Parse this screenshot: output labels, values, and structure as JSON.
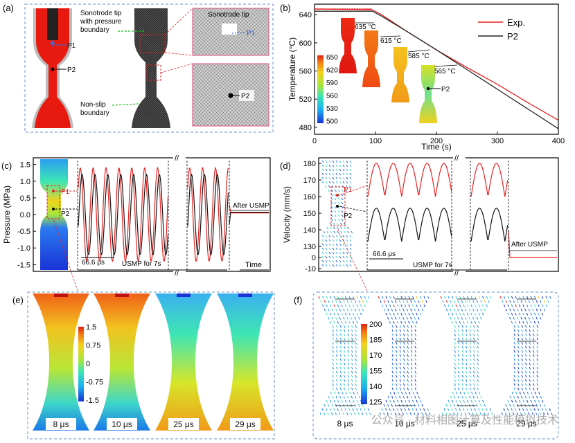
{
  "panels": {
    "a": {
      "label": "(a)",
      "sonotrode_tip_pressure_1": "Sonotrode tip",
      "sonotrode_tip_pressure_2": "with pressure",
      "sonotrode_tip_pressure_3": "boundary",
      "sonotrode_tip_zoom": "Sonotrode tip",
      "non_slip_1": "Non-slip",
      "non_slip_2": "boundary",
      "p1": "P1",
      "p2": "P2"
    },
    "b": {
      "label": "(b)",
      "ylabel": "Temperature (°C)",
      "xlabel": "Time (s)",
      "legend_exp": "Exp.",
      "legend_p2": "P2",
      "snapshots": [
        "635 °C",
        "615 °C",
        "585 °C",
        "565 °C"
      ],
      "colorbar_ticks": [
        "650",
        "620",
        "590",
        "560",
        "530",
        "500"
      ],
      "p2_marker": "P2",
      "chart_data": {
        "type": "line",
        "x_range": [
          0,
          400
        ],
        "y_range": [
          470,
          655
        ],
        "xticks": [
          0,
          100,
          200,
          300,
          400
        ],
        "yticks": [
          480,
          520,
          560,
          600,
          640
        ],
        "series": [
          {
            "name": "Exp.",
            "x": [
              0,
              95,
              110,
              150,
              200,
              250,
              300,
              350,
              400
            ],
            "y": [
              648,
              647,
              640,
              617,
              590,
              565,
              541,
              515,
              490
            ]
          },
          {
            "name": "P2",
            "x": [
              0,
              95,
              110,
              150,
              200,
              250,
              300,
              350,
              400
            ],
            "y": [
              645,
              645,
              638,
              617,
              590,
              562,
              534,
              506,
              478
            ]
          }
        ]
      }
    },
    "c": {
      "label": "(c)",
      "ylabel": "Pressure (MPa)",
      "yticks": [
        "1.5",
        "1.0",
        "0.5",
        "0.0",
        "-0.5",
        "-1.0",
        "-1.5"
      ],
      "p1": "P1",
      "p2": "P2",
      "period": "66.6 μs",
      "usmp": "USMP for 7s",
      "after": "After USMP",
      "time": "Time",
      "chart_data": {
        "type": "line",
        "y_range": [
          -1.7,
          1.7
        ],
        "period_us": 66.6,
        "series": [
          {
            "name": "P1",
            "amplitude": 1.4
          },
          {
            "name": "P2",
            "amplitude": 1.2
          }
        ],
        "after_usmp_value": 0.05
      }
    },
    "d": {
      "label": "(d)",
      "ylabel": "Velocity (mm/s)",
      "yticks": [
        "180",
        "170",
        "160",
        "150",
        "140",
        "130",
        "0",
        "-10"
      ],
      "p1": "P1",
      "p2": "P2",
      "period": "66.6 μs",
      "usmp": "USMP for 7s",
      "after": "After USMP",
      "chart_data": {
        "type": "line",
        "series": [
          {
            "name": "P1",
            "max": 180,
            "min": 160
          },
          {
            "name": "P2",
            "max": 153,
            "min": 133
          }
        ],
        "after_usmp_value": 0
      }
    },
    "e": {
      "label": "(e)",
      "colorbar_ticks": [
        "1.5",
        "0.75",
        "0",
        "-0.75",
        "-1.5"
      ],
      "times": [
        "8 μs",
        "10 μs",
        "25 μs",
        "29 μs"
      ]
    },
    "f": {
      "label": "(f)",
      "colorbar_ticks": [
        "200",
        "185",
        "170",
        "155",
        "140",
        "125"
      ],
      "times": [
        "8 μs",
        "10 μs",
        "25 μs",
        "29 μs"
      ]
    }
  },
  "watermark": "公众号 · 材料相图计算及性能模拟技术"
}
